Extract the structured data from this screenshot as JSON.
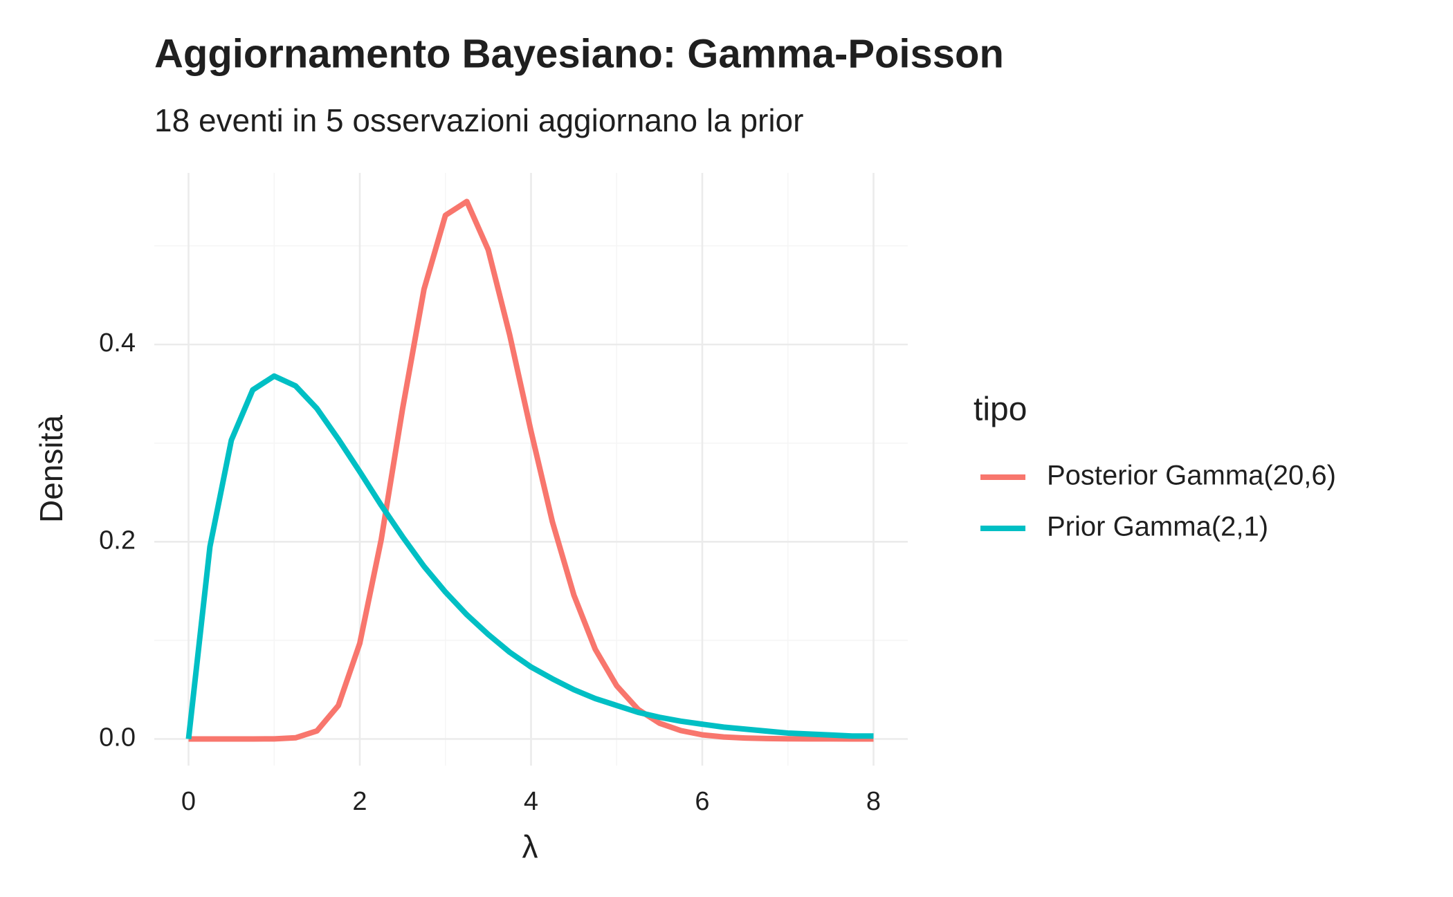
{
  "chart_data": {
    "type": "line",
    "title": "Aggiornamento Bayesiano: Gamma-Poisson",
    "subtitle": "18 eventi in 5 osservazioni aggiornano la prior",
    "x_label": "λ",
    "y_label": "Densità",
    "legend_title": "tipo",
    "legend_position": "right",
    "x": [
      0,
      0.25,
      0.5,
      0.75,
      1,
      1.25,
      1.5,
      1.75,
      2,
      2.25,
      2.5,
      2.75,
      3,
      3.25,
      3.5,
      3.75,
      4,
      4.25,
      4.5,
      4.75,
      5,
      5.25,
      5.5,
      5.75,
      6,
      6.25,
      6.5,
      6.75,
      7,
      7.25,
      7.5,
      7.75,
      8
    ],
    "series": [
      {
        "name": "Posterior Gamma(20,6)",
        "color": "#f8766d",
        "values": [
          0,
          0,
          0,
          0,
          0.0001,
          0.0012,
          0.0082,
          0.034,
          0.097,
          0.202,
          0.335,
          0.456,
          0.531,
          0.545,
          0.496,
          0.41,
          0.312,
          0.22,
          0.146,
          0.091,
          0.054,
          0.03,
          0.016,
          0.0085,
          0.0042,
          0.002,
          0.001,
          0.0004,
          0.0002,
          0.0001,
          0.0001,
          0,
          0
        ]
      },
      {
        "name": "Prior Gamma(2,1)",
        "color": "#00bfc4",
        "values": [
          0,
          0.195,
          0.303,
          0.354,
          0.368,
          0.358,
          0.335,
          0.304,
          0.271,
          0.237,
          0.205,
          0.175,
          0.149,
          0.126,
          0.106,
          0.088,
          0.073,
          0.061,
          0.05,
          0.041,
          0.034,
          0.027,
          0.022,
          0.018,
          0.015,
          0.012,
          0.01,
          0.008,
          0.006,
          0.005,
          0.004,
          0.003,
          0.003
        ]
      }
    ],
    "xlim": [
      -0.4,
      8.4
    ],
    "ylim": [
      -0.027,
      0.574
    ],
    "xticks": [
      0,
      2,
      4,
      6,
      8
    ],
    "yticks": [
      {
        "value": 0,
        "label": "0.0"
      },
      {
        "value": 0.2,
        "label": "0.2"
      },
      {
        "value": 0.4,
        "label": "0.4"
      }
    ],
    "grid": true
  }
}
